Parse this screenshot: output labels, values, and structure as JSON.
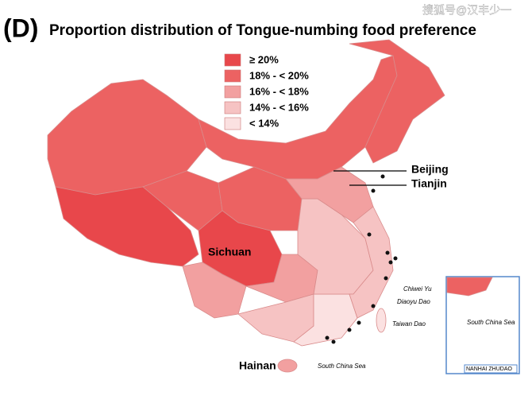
{
  "panel_label": "(D)",
  "title": "Proportion distribution of Tongue-numbing food preference",
  "watermark": "搜狐号@汉丰少一",
  "legend": {
    "entries": [
      {
        "label": "≥ 20%",
        "color": "#e8474b"
      },
      {
        "label": "18% - < 20%",
        "color": "#ec6262"
      },
      {
        "label": "16% - < 18%",
        "color": "#f2a0a0"
      },
      {
        "label": "14% - < 16%",
        "color": "#f6c3c3"
      },
      {
        "label": "< 14%",
        "color": "#fbe1e1"
      }
    ]
  },
  "places": [
    {
      "text": "Beijing"
    },
    {
      "text": "Tianjin"
    },
    {
      "text": "Sichuan"
    },
    {
      "text": "Hainan"
    },
    {
      "text": "Chiwei Yu"
    },
    {
      "text": "Diaoyu Dao"
    },
    {
      "text": "Taiwan Dao"
    },
    {
      "text": "South China Sea"
    },
    {
      "text": "South China Sea"
    },
    {
      "text": "NANHAI ZHUDAO"
    }
  ]
}
